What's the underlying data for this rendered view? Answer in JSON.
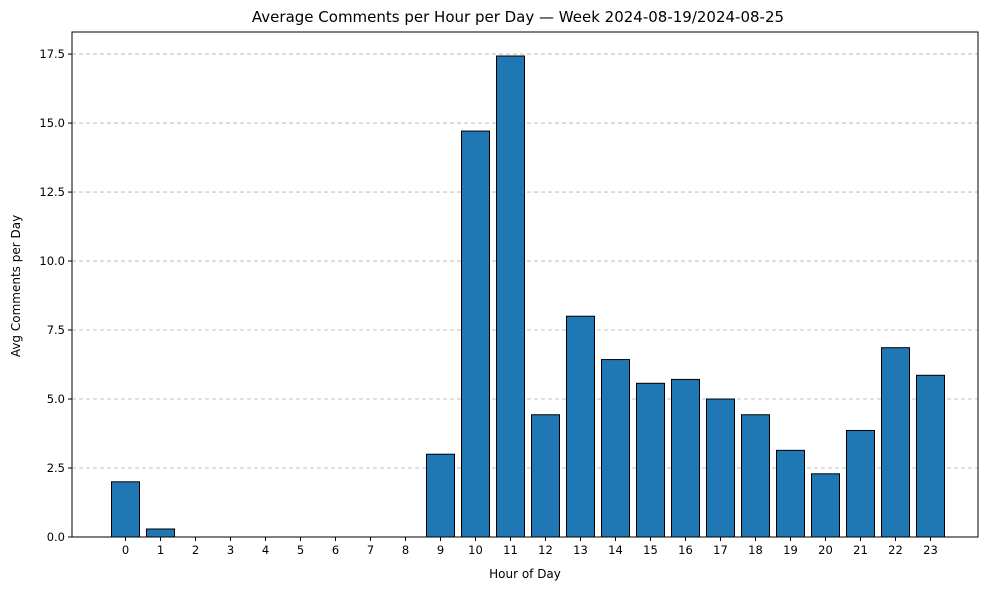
{
  "chart_data": {
    "type": "bar",
    "title": "Average Comments per Hour per Day — Week 2024-08-19/2024-08-25",
    "xlabel": "Hour of Day",
    "ylabel": "Avg Comments per Day",
    "categories": [
      "0",
      "1",
      "2",
      "3",
      "4",
      "5",
      "6",
      "7",
      "8",
      "9",
      "10",
      "11",
      "12",
      "13",
      "14",
      "15",
      "16",
      "17",
      "18",
      "19",
      "20",
      "21",
      "22",
      "23"
    ],
    "values": [
      2.0,
      0.29,
      0,
      0,
      0,
      0,
      0,
      0,
      0,
      3.0,
      14.71,
      17.43,
      4.43,
      8.0,
      6.43,
      5.57,
      5.71,
      5.0,
      4.43,
      3.14,
      2.29,
      3.86,
      6.86,
      5.86
    ],
    "ylim": [
      0,
      18.3
    ],
    "yticks": [
      "0.0",
      "2.5",
      "5.0",
      "7.5",
      "10.0",
      "12.5",
      "15.0",
      "17.5"
    ],
    "grid": "y-dashed",
    "bar_color": "#1f77b4",
    "edge_color": "#000000",
    "grid_color": "#b0b0b0"
  }
}
